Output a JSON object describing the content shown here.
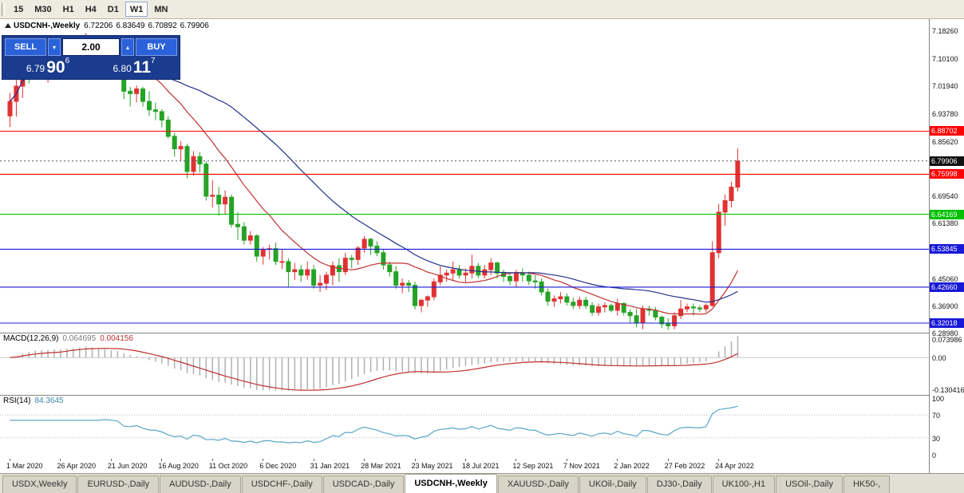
{
  "colors": {
    "candle_up": "#e03232",
    "candle_down": "#26a326",
    "ma_fast": "#c03030",
    "ma_slow": "#23308c",
    "macd_hist": "#b0b0b0",
    "macd_signal": "#c03030",
    "rsi_line": "#58a6c8",
    "level_red": "#ff0000",
    "level_green": "#00c000",
    "level_blue": "#1818d8",
    "bid_line": "#111111"
  },
  "toolbar": {
    "timeframes": [
      {
        "label": "15",
        "active": false
      },
      {
        "label": "M30",
        "active": false
      },
      {
        "label": "H1",
        "active": false
      },
      {
        "label": "H4",
        "active": false
      },
      {
        "label": "D1",
        "active": false
      },
      {
        "label": "W1",
        "active": true
      },
      {
        "label": "MN",
        "active": false
      }
    ]
  },
  "chart_header": {
    "symbol": "USDCNH-,Weekly",
    "open": "6.72206",
    "high": "6.83649",
    "low": "6.70892",
    "close": "6.79906"
  },
  "trade_panel": {
    "sell_label": "SELL",
    "buy_label": "BUY",
    "volume": "2.00",
    "sell_big": "6.79",
    "sell_pips": "90",
    "sell_pt": "6",
    "buy_big": "6.80",
    "buy_pips": "11",
    "buy_pt": "7"
  },
  "y_axis_ticks": [
    {
      "label": "7.18260",
      "price": 7.1826
    },
    {
      "label": "7.10100",
      "price": 7.101
    },
    {
      "label": "7.01940",
      "price": 7.0194
    },
    {
      "label": "6.93780",
      "price": 6.9378
    },
    {
      "label": "6.85620",
      "price": 6.8562
    },
    {
      "label": "6.69540",
      "price": 6.6954
    },
    {
      "label": "6.61380",
      "price": 6.6138
    },
    {
      "label": "6.45060",
      "price": 6.4506
    },
    {
      "label": "6.36900",
      "price": 6.369
    },
    {
      "label": "6.28980",
      "price": 6.2898
    }
  ],
  "levels": [
    {
      "price": 6.88702,
      "label": "6.88702",
      "color_key": "level_red"
    },
    {
      "price": 6.79906,
      "label": "6.79906",
      "color_key": "bid_line",
      "dashed": true
    },
    {
      "price": 6.75998,
      "label": "6.75998",
      "color_key": "level_red"
    },
    {
      "price": 6.64169,
      "label": "6.64169",
      "color_key": "level_green"
    },
    {
      "price": 6.53845,
      "label": "6.53845",
      "color_key": "level_blue"
    },
    {
      "price": 6.4266,
      "label": "6.42660",
      "color_key": "level_blue"
    },
    {
      "price": 6.32018,
      "label": "6.32018",
      "color_key": "level_blue"
    }
  ],
  "x_axis_labels": [
    {
      "text": "1 Mar 2020",
      "bar": 0
    },
    {
      "text": "26 Apr 2020",
      "bar": 8
    },
    {
      "text": "21 Jun 2020",
      "bar": 16
    },
    {
      "text": "16 Aug 2020",
      "bar": 24
    },
    {
      "text": "11 Oct 2020",
      "bar": 32
    },
    {
      "text": "6 Dec 2020",
      "bar": 40
    },
    {
      "text": "31 Jan 2021",
      "bar": 48
    },
    {
      "text": "28 Mar 2021",
      "bar": 56
    },
    {
      "text": "23 May 2021",
      "bar": 64
    },
    {
      "text": "18 Jul 2021",
      "bar": 72
    },
    {
      "text": "12 Sep 2021",
      "bar": 80
    },
    {
      "text": "7 Nov 2021",
      "bar": 88
    },
    {
      "text": "2 Jan 2022",
      "bar": 96
    },
    {
      "text": "27 Feb 2022",
      "bar": 104
    },
    {
      "text": "24 Apr 2022",
      "bar": 112
    }
  ],
  "macd_panel": {
    "name": "MACD(12,26,9)",
    "value_main": "0.064695",
    "value_signal": "0.004156",
    "axis_top": "0.073986",
    "axis_zero": "0.00",
    "axis_bottom": "-0.130416",
    "fast": 12,
    "slow": 26,
    "signal": 9
  },
  "rsi_panel": {
    "name": "RSI(14)",
    "value": "84.3645",
    "axis": [
      "100",
      "70",
      "30",
      "0"
    ],
    "period": 14,
    "upper": 70,
    "lower": 30
  },
  "tabs": [
    {
      "label": "USDX,Weekly",
      "active": false
    },
    {
      "label": "EURUSD-,Daily",
      "active": false
    },
    {
      "label": "AUDUSD-,Daily",
      "active": false
    },
    {
      "label": "USDCHF-,Daily",
      "active": false
    },
    {
      "label": "USDCAD-,Daily",
      "active": false
    },
    {
      "label": "USDCNH-,Weekly",
      "active": true
    },
    {
      "label": "XAUUSD-,Daily",
      "active": false
    },
    {
      "label": "UKOil-,Daily",
      "active": false
    },
    {
      "label": "DJ30-,Daily",
      "active": false
    },
    {
      "label": "UK100-,H1",
      "active": false
    },
    {
      "label": "USOil-,Daily",
      "active": false
    },
    {
      "label": "HK50-,",
      "active": false
    }
  ],
  "chart_data": {
    "type": "candlestick",
    "title": "USDCNH-,Weekly",
    "first_bar_date": "1 Mar 2020",
    "bars_per_label": 8,
    "ylim": [
      6.292,
      7.218
    ],
    "overlays": [
      {
        "name": "ma-fast",
        "type": "sma",
        "period": 13
      },
      {
        "name": "ma-slow",
        "type": "sma",
        "period": 34
      }
    ],
    "indicators": [
      {
        "name": "MACD",
        "fast": 12,
        "slow": 26,
        "signal": 9
      },
      {
        "name": "RSI",
        "period": 14
      }
    ],
    "candles": [
      [
        6.932,
        7.0,
        6.9,
        6.975
      ],
      [
        6.975,
        7.054,
        6.93,
        7.02
      ],
      [
        7.02,
        7.165,
        6.985,
        7.112
      ],
      [
        7.112,
        7.144,
        7.028,
        7.095
      ],
      [
        7.095,
        7.125,
        7.05,
        7.092
      ],
      [
        7.092,
        7.11,
        7.042,
        7.065
      ],
      [
        7.065,
        7.088,
        7.03,
        7.072
      ],
      [
        7.072,
        7.108,
        7.048,
        7.095
      ],
      [
        7.095,
        7.115,
        7.052,
        7.068
      ],
      [
        7.068,
        7.135,
        7.06,
        7.12
      ],
      [
        7.12,
        7.132,
        7.078,
        7.102
      ],
      [
        7.102,
        7.148,
        7.088,
        7.135
      ],
      [
        7.135,
        7.177,
        7.112,
        7.153
      ],
      [
        7.153,
        7.168,
        7.058,
        7.082
      ],
      [
        7.082,
        7.098,
        7.042,
        7.07
      ],
      [
        7.07,
        7.102,
        7.055,
        7.085
      ],
      [
        7.085,
        7.098,
        7.052,
        7.078
      ],
      [
        7.078,
        7.092,
        7.04,
        7.068
      ],
      [
        7.068,
        7.075,
        6.982,
        7.005
      ],
      [
        7.005,
        7.018,
        6.96,
        6.998
      ],
      [
        6.998,
        7.022,
        6.972,
        7.012
      ],
      [
        7.012,
        7.018,
        6.96,
        6.975
      ],
      [
        6.975,
        7.005,
        6.932,
        6.95
      ],
      [
        6.95,
        6.972,
        6.92,
        6.945
      ],
      [
        6.945,
        6.952,
        6.898,
        6.92
      ],
      [
        6.92,
        6.932,
        6.865,
        6.872
      ],
      [
        6.872,
        6.882,
        6.812,
        6.835
      ],
      [
        6.835,
        6.858,
        6.8,
        6.842
      ],
      [
        6.842,
        6.85,
        6.748,
        6.768
      ],
      [
        6.768,
        6.828,
        6.755,
        6.812
      ],
      [
        6.812,
        6.825,
        6.765,
        6.79
      ],
      [
        6.79,
        6.798,
        6.682,
        6.695
      ],
      [
        6.695,
        6.742,
        6.662,
        6.698
      ],
      [
        6.698,
        6.722,
        6.638,
        6.672
      ],
      [
        6.672,
        6.712,
        6.642,
        6.692
      ],
      [
        6.692,
        6.7,
        6.602,
        6.612
      ],
      [
        6.612,
        6.648,
        6.566,
        6.605
      ],
      [
        6.605,
        6.618,
        6.552,
        6.565
      ],
      [
        6.565,
        6.592,
        6.552,
        6.578
      ],
      [
        6.578,
        6.582,
        6.502,
        6.518
      ],
      [
        6.518,
        6.545,
        6.493,
        6.538
      ],
      [
        6.538,
        6.552,
        6.508,
        6.54
      ],
      [
        6.54,
        6.558,
        6.492,
        6.502
      ],
      [
        6.502,
        6.538,
        6.48,
        6.502
      ],
      [
        6.502,
        6.512,
        6.428,
        6.472
      ],
      [
        6.472,
        6.498,
        6.448,
        6.478
      ],
      [
        6.478,
        6.492,
        6.442,
        6.462
      ],
      [
        6.462,
        6.502,
        6.448,
        6.478
      ],
      [
        6.478,
        6.492,
        6.422,
        6.432
      ],
      [
        6.432,
        6.462,
        6.412,
        6.438
      ],
      [
        6.438,
        6.472,
        6.418,
        6.462
      ],
      [
        6.462,
        6.502,
        6.432,
        6.49
      ],
      [
        6.49,
        6.512,
        6.442,
        6.472
      ],
      [
        6.472,
        6.528,
        6.462,
        6.512
      ],
      [
        6.512,
        6.522,
        6.482,
        6.508
      ],
      [
        6.508,
        6.548,
        6.492,
        6.542
      ],
      [
        6.542,
        6.578,
        6.528,
        6.568
      ],
      [
        6.568,
        6.572,
        6.522,
        6.548
      ],
      [
        6.548,
        6.562,
        6.518,
        6.528
      ],
      [
        6.528,
        6.538,
        6.478,
        6.492
      ],
      [
        6.492,
        6.502,
        6.458,
        6.472
      ],
      [
        6.472,
        6.488,
        6.422,
        6.432
      ],
      [
        6.432,
        6.452,
        6.408,
        6.438
      ],
      [
        6.438,
        6.448,
        6.412,
        6.432
      ],
      [
        6.432,
        6.442,
        6.36,
        6.372
      ],
      [
        6.372,
        6.392,
        6.352,
        6.388
      ],
      [
        6.388,
        6.402,
        6.368,
        6.398
      ],
      [
        6.398,
        6.452,
        6.388,
        6.442
      ],
      [
        6.442,
        6.488,
        6.432,
        6.462
      ],
      [
        6.462,
        6.478,
        6.442,
        6.468
      ],
      [
        6.468,
        6.502,
        6.448,
        6.478
      ],
      [
        6.478,
        6.492,
        6.452,
        6.462
      ],
      [
        6.462,
        6.482,
        6.442,
        6.468
      ],
      [
        6.468,
        6.522,
        6.452,
        6.488
      ],
      [
        6.488,
        6.498,
        6.452,
        6.462
      ],
      [
        6.462,
        6.492,
        6.452,
        6.478
      ],
      [
        6.478,
        6.512,
        6.462,
        6.498
      ],
      [
        6.498,
        6.502,
        6.452,
        6.468
      ],
      [
        6.468,
        6.478,
        6.442,
        6.458
      ],
      [
        6.458,
        6.468,
        6.432,
        6.445
      ],
      [
        6.445,
        6.478,
        6.425,
        6.468
      ],
      [
        6.468,
        6.482,
        6.442,
        6.462
      ],
      [
        6.462,
        6.472,
        6.432,
        6.445
      ],
      [
        6.445,
        6.462,
        6.422,
        6.442
      ],
      [
        6.442,
        6.452,
        6.402,
        6.412
      ],
      [
        6.412,
        6.422,
        6.372,
        6.385
      ],
      [
        6.385,
        6.402,
        6.368,
        6.392
      ],
      [
        6.392,
        6.412,
        6.378,
        6.398
      ],
      [
        6.398,
        6.408,
        6.372,
        6.382
      ],
      [
        6.382,
        6.395,
        6.362,
        6.372
      ],
      [
        6.372,
        6.398,
        6.362,
        6.388
      ],
      [
        6.388,
        6.398,
        6.362,
        6.372
      ],
      [
        6.372,
        6.382,
        6.342,
        6.352
      ],
      [
        6.352,
        6.378,
        6.342,
        6.368
      ],
      [
        6.368,
        6.382,
        6.352,
        6.372
      ],
      [
        6.372,
        6.378,
        6.352,
        6.358
      ],
      [
        6.358,
        6.392,
        6.342,
        6.378
      ],
      [
        6.378,
        6.382,
        6.342,
        6.352
      ],
      [
        6.352,
        6.362,
        6.322,
        6.342
      ],
      [
        6.342,
        6.362,
        6.308,
        6.322
      ],
      [
        6.322,
        6.372,
        6.302,
        6.362
      ],
      [
        6.362,
        6.372,
        6.342,
        6.358
      ],
      [
        6.358,
        6.368,
        6.328,
        6.338
      ],
      [
        6.338,
        6.342,
        6.305,
        6.318
      ],
      [
        6.318,
        6.335,
        6.3,
        6.312
      ],
      [
        6.312,
        6.352,
        6.302,
        6.342
      ],
      [
        6.342,
        6.388,
        6.332,
        6.362
      ],
      [
        6.362,
        6.378,
        6.352,
        6.368
      ],
      [
        6.368,
        6.378,
        6.342,
        6.365
      ],
      [
        6.365,
        6.372,
        6.352,
        6.362
      ],
      [
        6.362,
        6.378,
        6.352,
        6.372
      ],
      [
        6.372,
        6.562,
        6.368,
        6.528
      ],
      [
        6.528,
        6.672,
        6.512,
        6.648
      ],
      [
        6.648,
        6.7,
        6.608,
        6.682
      ],
      [
        6.682,
        6.738,
        6.662,
        6.722
      ],
      [
        6.72206,
        6.83649,
        6.70892,
        6.79906
      ]
    ]
  }
}
